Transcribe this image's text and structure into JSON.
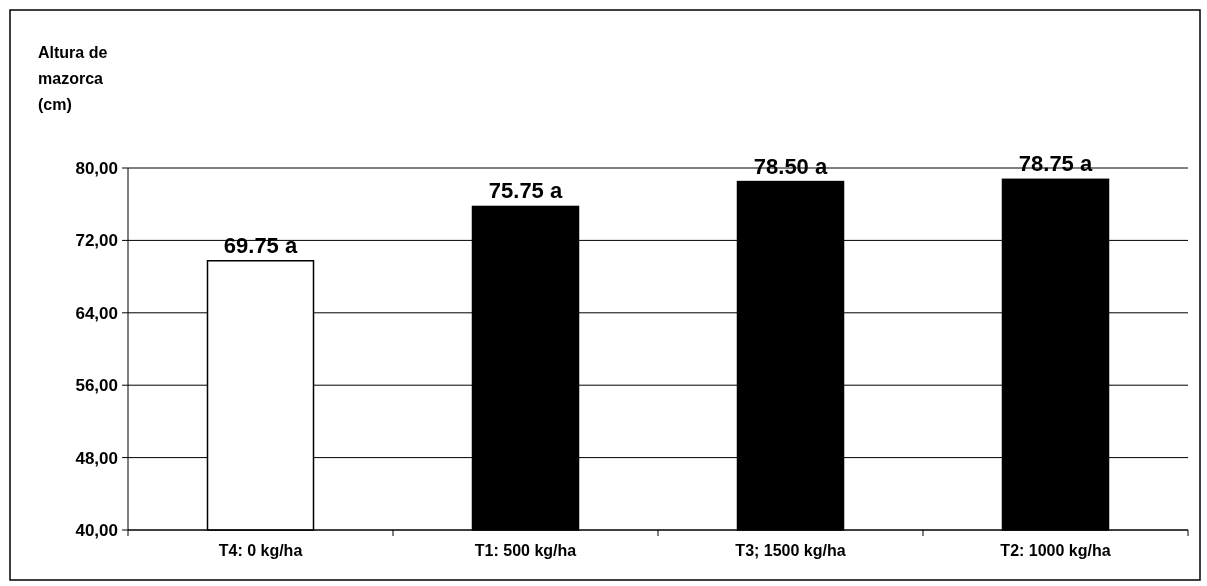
{
  "chart_data": {
    "type": "bar",
    "ylabel": "Altura de mazorca (cm)",
    "categories": [
      "T4: 0 kg/ha",
      "T1: 500 kg/ha",
      "T3; 1500 kg/ha",
      "T2: 1000 kg/ha"
    ],
    "values": [
      69.75,
      75.75,
      78.5,
      78.75
    ],
    "colors": [
      "#ffffff",
      "#000000",
      "#000000",
      "#000000"
    ],
    "value_labels": [
      "69.75 a",
      "75.75 a",
      "78.50 a",
      "78.75 a"
    ],
    "ylim": [
      40,
      80
    ],
    "yticks": [
      {
        "value": 40,
        "label": "40,00"
      },
      {
        "value": 48,
        "label": "48,00"
      },
      {
        "value": 56,
        "label": "56,00"
      },
      {
        "value": 64,
        "label": "64,00"
      },
      {
        "value": 72,
        "label": "72,00"
      },
      {
        "value": 80,
        "label": "80,00"
      }
    ],
    "grid": "y"
  }
}
